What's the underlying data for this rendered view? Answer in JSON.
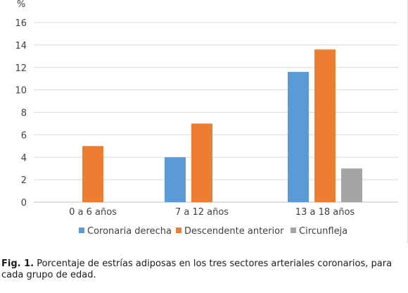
{
  "chart_data": {
    "type": "bar",
    "y_unit": "%",
    "categories": [
      "0 a 6  años",
      "7 a 12  años",
      "13 a 18  años"
    ],
    "series": [
      {
        "name": "Coronaria derecha",
        "color": "#5b9bd5",
        "values": [
          0,
          4,
          11.6
        ]
      },
      {
        "name": "Descendente anterior",
        "color": "#ed7d31",
        "values": [
          5,
          7,
          13.6
        ]
      },
      {
        "name": "Circunflejа",
        "color": "#a5a5a5",
        "values": [
          0,
          0,
          3
        ]
      }
    ],
    "ylim": [
      0,
      16
    ],
    "yticks": [
      0,
      2,
      4,
      6,
      8,
      10,
      12,
      14,
      16
    ],
    "grid": true,
    "legend_position": "bottom"
  },
  "caption": {
    "label": "Fig. 1.",
    "text": " Porcentaje de estrías adiposas en los tres sectores arteriales coronarios, para cada grupo de edad."
  }
}
